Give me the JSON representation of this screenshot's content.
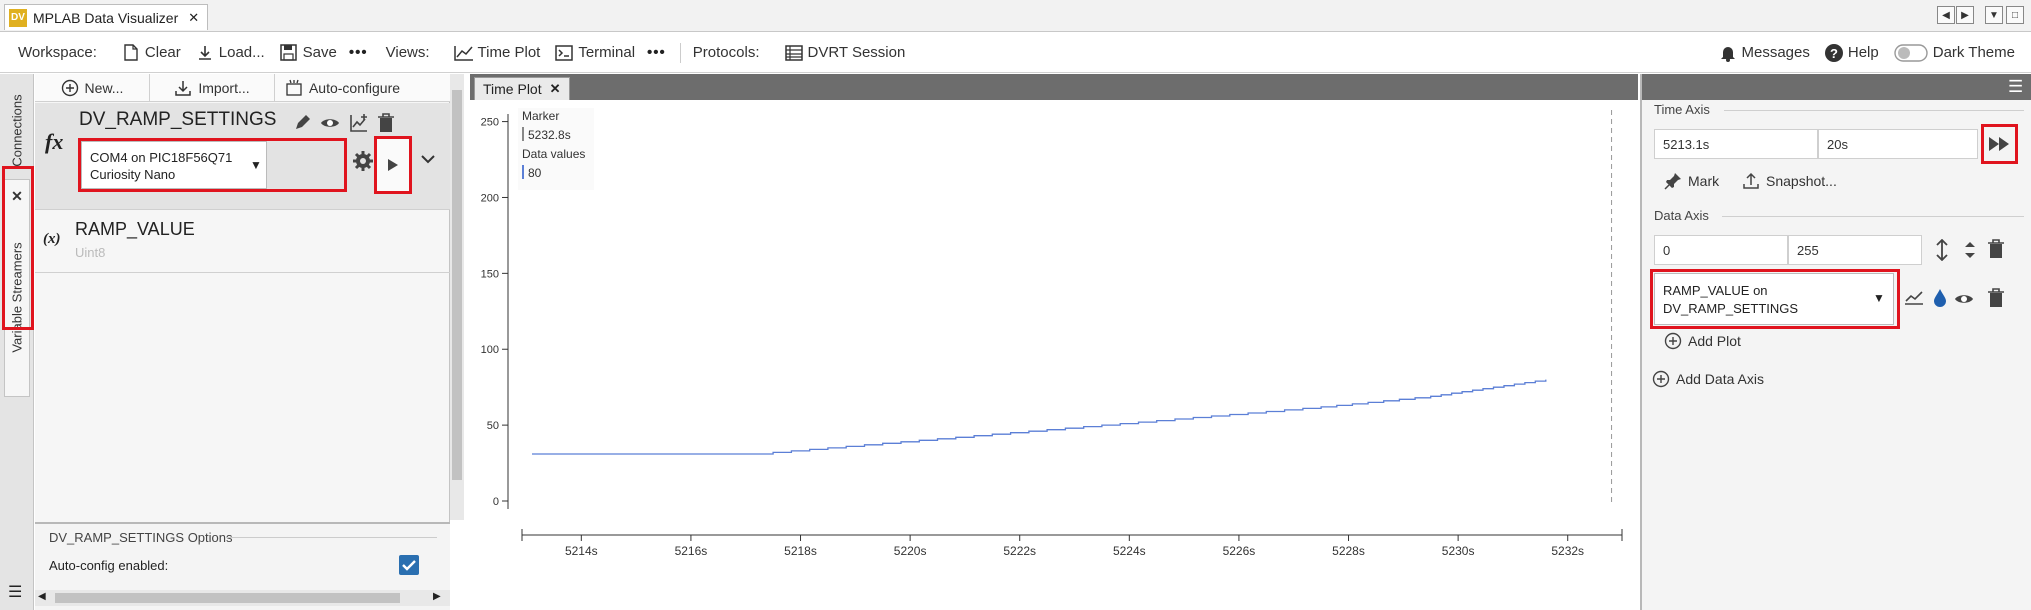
{
  "window": {
    "title": "MPLAB Data Visualizer",
    "logo_text": "DV"
  },
  "toolbar": {
    "workspace_label": "Workspace:",
    "clear": "Clear",
    "load": "Load...",
    "save": "Save",
    "more": "•••",
    "views_label": "Views:",
    "time_plot": "Time Plot",
    "terminal": "Terminal",
    "more2": "•••",
    "protocols_label": "Protocols:",
    "dvrt": "DVRT Session",
    "messages": "Messages",
    "help": "Help",
    "dark_theme": "Dark Theme"
  },
  "rail": {
    "connections": "Connections",
    "variable_streamers": "Variable Streamers",
    "close": "✕"
  },
  "left": {
    "new": "New...",
    "import": "Import...",
    "auto_configure": "Auto-configure",
    "streamer_name": "DV_RAMP_SETTINGS",
    "fx": "fx",
    "source": "COM4 on PIC18F56Q71 Curiosity Nano",
    "var_symbol": "(x)",
    "var_name": "RAMP_VALUE",
    "var_type": "Uint8",
    "options_title": "DV_RAMP_SETTINGS Options",
    "auto_config_label": "Auto-config enabled:",
    "auto_config_checked": true
  },
  "center": {
    "tab": "Time Plot"
  },
  "chart_data": {
    "type": "line",
    "title": "",
    "xlabel": "",
    "ylabel": "",
    "xlim": [
      5213.1,
      5233.1
    ],
    "ylim": [
      0,
      255
    ],
    "x_ticks": [
      "5214s",
      "5216s",
      "5218s",
      "5220s",
      "5222s",
      "5224s",
      "5226s",
      "5228s",
      "5230s",
      "5232s"
    ],
    "y_ticks": [
      "0",
      "50",
      "100",
      "150",
      "200",
      "250"
    ],
    "marker": {
      "label": "Marker",
      "time": "5232.8s",
      "values_label": "Data values",
      "value": "80"
    },
    "series": [
      {
        "color": "#5b7fd6",
        "x": [
          5213.1,
          5217.5,
          5217.5,
          5219.5,
          5221.5,
          5223.5,
          5225.5,
          5227.5,
          5229.5,
          5231.6
        ],
        "y": [
          31,
          31,
          32,
          38,
          44,
          50,
          56,
          62,
          69,
          80
        ]
      }
    ]
  },
  "right": {
    "time_axis_label": "Time Axis",
    "time_start": "5213.1s",
    "time_window": "20s",
    "mark": "Mark",
    "snapshot": "Snapshot...",
    "data_axis_label": "Data Axis",
    "data_min": "0",
    "data_max": "255",
    "plot_source": "RAMP_VALUE on DV_RAMP_SETTINGS",
    "add_plot": "Add Plot",
    "add_data_axis": "Add Data Axis"
  }
}
